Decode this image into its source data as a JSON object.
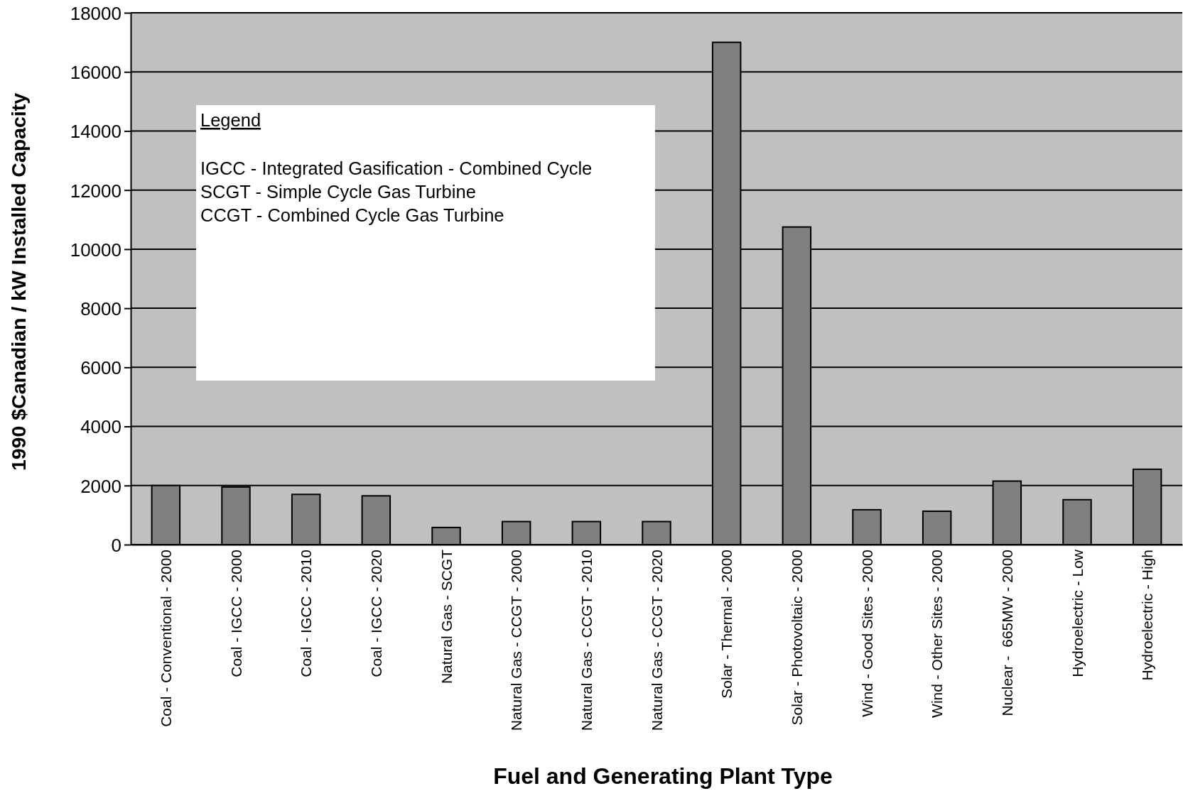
{
  "chart_data": {
    "type": "bar",
    "xlabel": "Fuel and Generating Plant Type",
    "ylabel": "1990 $Canadian / kW Installed Capacity",
    "categories": [
      "Coal - Conventional - 2000",
      "Coal - IGCC - 2000",
      "Coal - IGCC - 2010",
      "Coal - IGCC - 2020",
      "Natural Gas - SCGT",
      "Natural Gas - CCGT - 2000",
      "Natural Gas - CCGT - 2010",
      "Natural Gas - CCGT - 2020",
      "Solar - Thermal - 2000",
      "Solar - Photovoltaic - 2000",
      "Wind - Good Sites - 2000",
      "Wind - Other Sites - 2000",
      "Nuclear -  665MW - 2000",
      "Hydroelectric - Low",
      "Hydroelectric - High"
    ],
    "values": [
      2000,
      1950,
      1700,
      1650,
      580,
      780,
      780,
      780,
      17000,
      10750,
      1180,
      1130,
      2150,
      1520,
      2550
    ],
    "color": "#808080",
    "ylim": [
      0,
      18000
    ],
    "yticks": [
      0,
      2000,
      4000,
      6000,
      8000,
      10000,
      12000,
      14000,
      16000,
      18000
    ],
    "grid": true,
    "annotations": [
      "Legend",
      "IGCC - Integrated Gasification - Combined Cycle",
      "SCGT - Simple Cycle Gas Turbine",
      "CCGT - Combined Cycle Gas Turbine"
    ]
  }
}
